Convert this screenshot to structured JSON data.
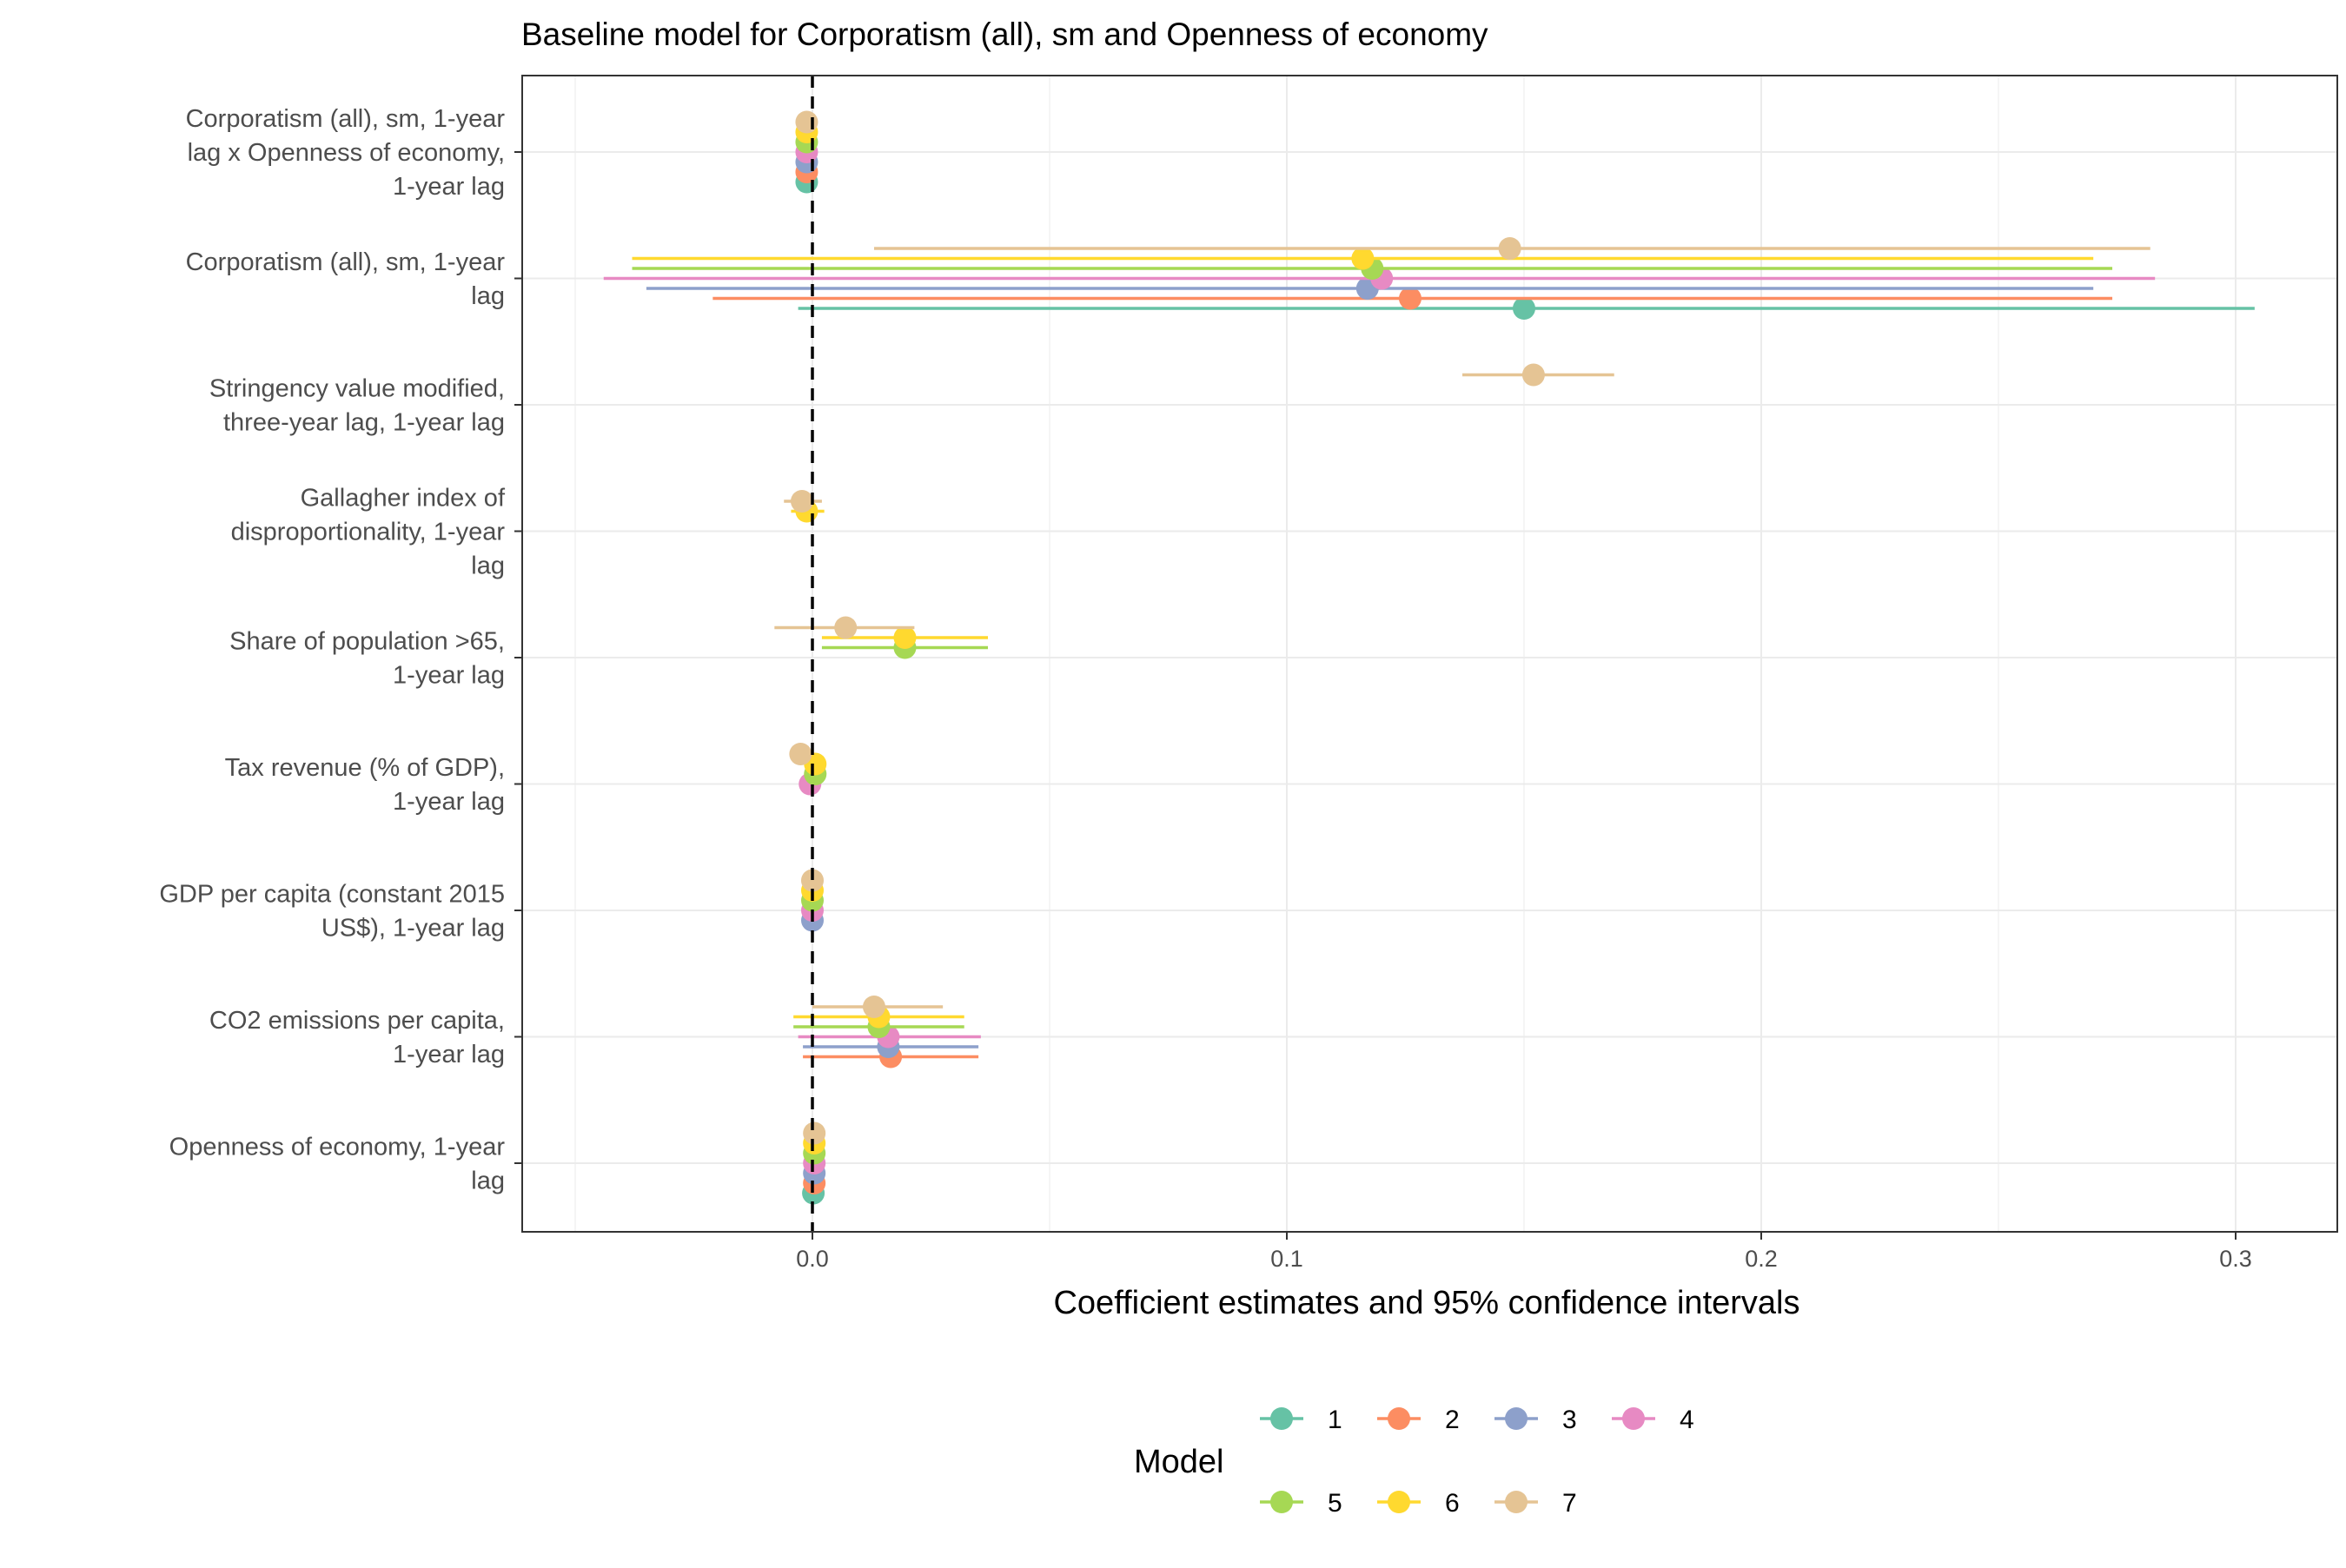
{
  "chart_data": {
    "type": "coefficient-plot",
    "title": "Baseline model for Corporatism (all), sm and Openness of economy",
    "xlabel": "Coefficient estimates and 95% confidence intervals",
    "xlim": [
      -0.05,
      0.32
    ],
    "x_ticks": [
      0.0,
      0.1,
      0.2,
      0.3
    ],
    "x_tick_labels": [
      "0.0",
      "0.1",
      "0.2",
      "0.3"
    ],
    "reference_line": 0,
    "grid": true,
    "legend": {
      "title": "Model",
      "position": "bottom",
      "entries": [
        {
          "name": "1",
          "color": "#66C2A5"
        },
        {
          "name": "2",
          "color": "#FC8D62"
        },
        {
          "name": "3",
          "color": "#8DA0CB"
        },
        {
          "name": "4",
          "color": "#E78AC3"
        },
        {
          "name": "5",
          "color": "#A6D854"
        },
        {
          "name": "6",
          "color": "#FFD92F"
        },
        {
          "name": "7",
          "color": "#E5C494"
        }
      ]
    },
    "terms": [
      {
        "lines": [
          "Corporatism (all), sm, 1-year",
          "lag x Openness of economy,",
          "1-year lag"
        ],
        "estimates": [
          {
            "model": "1",
            "est": -0.0012,
            "lo": -0.0014,
            "hi": -0.001
          },
          {
            "model": "2",
            "est": -0.0012,
            "lo": -0.0014,
            "hi": -0.001
          },
          {
            "model": "3",
            "est": -0.0012,
            "lo": -0.0014,
            "hi": -0.001
          },
          {
            "model": "4",
            "est": -0.0012,
            "lo": -0.0014,
            "hi": -0.001
          },
          {
            "model": "5",
            "est": -0.0012,
            "lo": -0.0014,
            "hi": -0.001
          },
          {
            "model": "6",
            "est": -0.0012,
            "lo": -0.0014,
            "hi": -0.001
          },
          {
            "model": "7",
            "est": -0.0012,
            "lo": -0.0014,
            "hi": -0.001
          }
        ]
      },
      {
        "lines": [
          "Corporatism (all), sm, 1-year",
          "lag"
        ],
        "estimates": [
          {
            "model": "1",
            "est": 0.15,
            "lo": -0.003,
            "hi": 0.304
          },
          {
            "model": "2",
            "est": 0.126,
            "lo": -0.021,
            "hi": 0.274
          },
          {
            "model": "3",
            "est": 0.117,
            "lo": -0.035,
            "hi": 0.27
          },
          {
            "model": "4",
            "est": 0.12,
            "lo": -0.044,
            "hi": 0.283
          },
          {
            "model": "5",
            "est": 0.118,
            "lo": -0.038,
            "hi": 0.274
          },
          {
            "model": "6",
            "est": 0.116,
            "lo": -0.038,
            "hi": 0.27
          },
          {
            "model": "7",
            "est": 0.147,
            "lo": 0.013,
            "hi": 0.282
          }
        ]
      },
      {
        "lines": [
          "Stringency value modified,",
          "three-year lag, 1-year lag"
        ],
        "estimates": [
          {
            "model": "7",
            "est": 0.152,
            "lo": 0.137,
            "hi": 0.169
          }
        ]
      },
      {
        "lines": [
          "Gallagher index of",
          "disproportionality, 1-year",
          "lag"
        ],
        "estimates": [
          {
            "model": "6",
            "est": -0.0012,
            "lo": -0.0045,
            "hi": 0.0025
          },
          {
            "model": "7",
            "est": -0.0022,
            "lo": -0.006,
            "hi": 0.002
          }
        ]
      },
      {
        "lines": [
          "Share of population >65,",
          "1-year lag"
        ],
        "estimates": [
          {
            "model": "5",
            "est": 0.0195,
            "lo": 0.002,
            "hi": 0.037
          },
          {
            "model": "6",
            "est": 0.0195,
            "lo": 0.002,
            "hi": 0.037
          },
          {
            "model": "7",
            "est": 0.007,
            "lo": -0.008,
            "hi": 0.0215
          }
        ]
      },
      {
        "lines": [
          "Tax revenue (% of GDP),",
          "1-year lag"
        ],
        "estimates": [
          {
            "model": "4",
            "est": -0.0005,
            "lo": -0.0015,
            "hi": 0.0005
          },
          {
            "model": "5",
            "est": 0.0006,
            "lo": -0.0004,
            "hi": 0.0016
          },
          {
            "model": "6",
            "est": 0.0006,
            "lo": -0.0004,
            "hi": 0.0016
          },
          {
            "model": "7",
            "est": -0.0025,
            "lo": -0.0035,
            "hi": -0.0015
          }
        ]
      },
      {
        "lines": [
          "GDP per capita (constant 2015",
          "US$), 1-year lag"
        ],
        "estimates": [
          {
            "model": "3",
            "est": 0.0,
            "lo": -0.0002,
            "hi": 0.0002
          },
          {
            "model": "4",
            "est": 0.0,
            "lo": -0.0002,
            "hi": 0.0002
          },
          {
            "model": "5",
            "est": 0.0,
            "lo": -0.0002,
            "hi": 0.0002
          },
          {
            "model": "6",
            "est": 0.0,
            "lo": -0.0002,
            "hi": 0.0002
          },
          {
            "model": "7",
            "est": 0.0,
            "lo": -0.0002,
            "hi": 0.0002
          }
        ]
      },
      {
        "lines": [
          "CO2 emissions per capita,",
          "1-year lag"
        ],
        "estimates": [
          {
            "model": "2",
            "est": 0.0165,
            "lo": -0.002,
            "hi": 0.035
          },
          {
            "model": "3",
            "est": 0.016,
            "lo": -0.002,
            "hi": 0.035
          },
          {
            "model": "4",
            "est": 0.016,
            "lo": -0.003,
            "hi": 0.0355
          },
          {
            "model": "5",
            "est": 0.014,
            "lo": -0.004,
            "hi": 0.032
          },
          {
            "model": "6",
            "est": 0.014,
            "lo": -0.004,
            "hi": 0.032
          },
          {
            "model": "7",
            "est": 0.013,
            "lo": 0.0,
            "hi": 0.0275
          }
        ]
      },
      {
        "lines": [
          "Openness of economy, 1-year",
          "lag"
        ],
        "estimates": [
          {
            "model": "1",
            "est": 0.0002,
            "lo": 0.0,
            "hi": 0.0004
          },
          {
            "model": "2",
            "est": 0.0004,
            "lo": 0.0002,
            "hi": 0.0006
          },
          {
            "model": "3",
            "est": 0.0004,
            "lo": 0.0002,
            "hi": 0.0006
          },
          {
            "model": "4",
            "est": 0.0004,
            "lo": 0.0002,
            "hi": 0.0006
          },
          {
            "model": "5",
            "est": 0.0004,
            "lo": 0.0002,
            "hi": 0.0006
          },
          {
            "model": "6",
            "est": 0.0004,
            "lo": 0.0002,
            "hi": 0.0006
          },
          {
            "model": "7",
            "est": 0.0004,
            "lo": 0.0002,
            "hi": 0.0006
          }
        ]
      }
    ]
  }
}
